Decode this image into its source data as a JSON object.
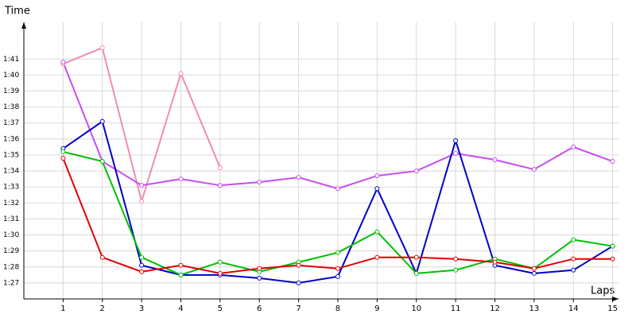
{
  "chart_data": {
    "type": "line",
    "x_label": "Laps",
    "y_label": "Time",
    "x": [
      1,
      2,
      3,
      4,
      5,
      6,
      7,
      8,
      9,
      10,
      11,
      12,
      13,
      14,
      15
    ],
    "xlim": [
      0,
      15.15
    ],
    "xticks": [
      1,
      2,
      3,
      4,
      5,
      6,
      7,
      8,
      9,
      10,
      11,
      12,
      13,
      14,
      15
    ],
    "ylim": [
      86,
      103.3
    ],
    "yticks": [
      {
        "value": 87,
        "label": "1:27"
      },
      {
        "value": 88,
        "label": "1:28"
      },
      {
        "value": 89,
        "label": "1:29"
      },
      {
        "value": 90,
        "label": "1:30"
      },
      {
        "value": 91,
        "label": "1:31"
      },
      {
        "value": 92,
        "label": "1:32"
      },
      {
        "value": 93,
        "label": "1:33"
      },
      {
        "value": 94,
        "label": "1:34"
      },
      {
        "value": 95,
        "label": "1:35"
      },
      {
        "value": 96,
        "label": "1:36"
      },
      {
        "value": 97,
        "label": "1:37"
      },
      {
        "value": 98,
        "label": "1:38"
      },
      {
        "value": 99,
        "label": "1:39"
      },
      {
        "value": 100,
        "label": "1:40"
      },
      {
        "value": 101,
        "label": "1:41"
      }
    ],
    "grid": true,
    "series": [
      {
        "color": "#f08cb4",
        "values": [
          100.7,
          101.7,
          92.1,
          100.1,
          94.2,
          null,
          null,
          null,
          null,
          null,
          null,
          null,
          null,
          null,
          null
        ]
      },
      {
        "color": "#c84cf0",
        "values": [
          100.8,
          94.6,
          93.1,
          93.5,
          93.1,
          93.3,
          93.6,
          92.9,
          93.7,
          94.0,
          95.1,
          94.7,
          94.1,
          95.5,
          94.6
        ]
      },
      {
        "color": "#0000c8",
        "values": [
          95.4,
          97.1,
          88.1,
          87.5,
          87.5,
          87.3,
          87.0,
          87.4,
          92.9,
          87.6,
          95.9,
          88.1,
          87.6,
          87.8,
          89.3
        ]
      },
      {
        "color": "#00c000",
        "values": [
          95.2,
          94.6,
          88.6,
          87.5,
          88.3,
          87.7,
          88.3,
          88.9,
          90.2,
          87.6,
          87.8,
          88.5,
          87.9,
          89.7,
          89.3
        ]
      },
      {
        "color": "#e00000",
        "values": [
          94.8,
          88.6,
          87.7,
          88.1,
          87.6,
          87.9,
          88.1,
          87.9,
          88.6,
          88.6,
          88.5,
          88.3,
          87.9,
          88.5,
          88.5
        ]
      }
    ]
  }
}
